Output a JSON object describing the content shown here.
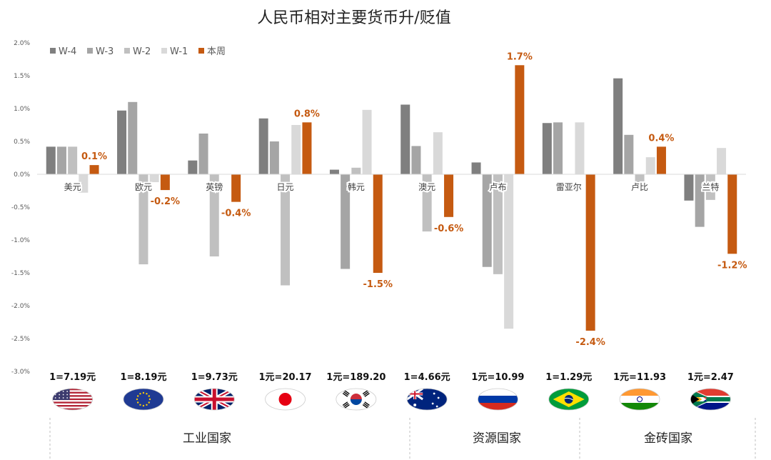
{
  "chart_data": {
    "type": "bar",
    "title": "人民币相对主要货币升/贬值",
    "xlabel": "",
    "ylabel": "",
    "ylim": [
      -3.0,
      2.0
    ],
    "y_ticks": [
      "2.0%",
      "1.5%",
      "1.0%",
      "0.5%",
      "0.0%",
      "-0.5%",
      "-1.0%",
      "-1.5%",
      "-2.0%",
      "-2.5%",
      "-3.0%"
    ],
    "legend_position": "top-left",
    "categories": [
      "美元",
      "欧元",
      "英镑",
      "日元",
      "韩元",
      "澳元",
      "卢布",
      "雷亚尔",
      "卢比",
      "兰特"
    ],
    "series": [
      {
        "name": "W-4",
        "color": "#7f7f7f",
        "values": [
          0.42,
          0.97,
          0.21,
          0.85,
          0.07,
          1.06,
          0.18,
          0.78,
          1.46,
          -0.4
        ]
      },
      {
        "name": "W-3",
        "color": "#a5a5a5",
        "values": [
          0.42,
          1.1,
          0.62,
          0.5,
          -1.44,
          0.43,
          -1.41,
          0.79,
          0.6,
          -0.8
        ]
      },
      {
        "name": "W-2",
        "color": "#c0c0c0",
        "values": [
          0.42,
          -1.37,
          -1.25,
          -1.69,
          0.1,
          -0.87,
          -1.52,
          0.0,
          -0.14,
          -0.39
        ]
      },
      {
        "name": "W-1",
        "color": "#d9d9d9",
        "values": [
          -0.28,
          -0.12,
          0.0,
          0.75,
          0.98,
          0.64,
          -2.35,
          0.79,
          0.26,
          0.4
        ]
      },
      {
        "name": "本周",
        "color": "#c55a11",
        "values": [
          0.14,
          -0.24,
          -0.42,
          0.79,
          -1.5,
          -0.65,
          1.66,
          -2.38,
          0.42,
          -1.21
        ]
      }
    ],
    "data_labels": [
      "0.1%",
      "-0.2%",
      "-0.4%",
      "0.8%",
      "-1.5%",
      "-0.6%",
      "1.7%",
      "-2.4%",
      "0.4%",
      "-1.2%"
    ]
  },
  "exchange_rates": [
    "1=7.19元",
    "1=8.19元",
    "1=9.73元",
    "1元=20.17",
    "1元=189.20",
    "1=4.66元",
    "1元=10.99",
    "1=1.29元",
    "1元=11.93",
    "1元=2.47"
  ],
  "flags": [
    "us-flag",
    "eu-flag",
    "uk-flag",
    "japan-flag",
    "korea-flag",
    "australia-flag",
    "russia-flag",
    "brazil-flag",
    "india-flag",
    "south-africa-flag"
  ],
  "groups": [
    "工业国家",
    "资源国家",
    "金砖国家"
  ],
  "colors": {
    "accent": "#c55a11",
    "axis": "#d9d9d9",
    "divider": "#bfbfbf"
  }
}
